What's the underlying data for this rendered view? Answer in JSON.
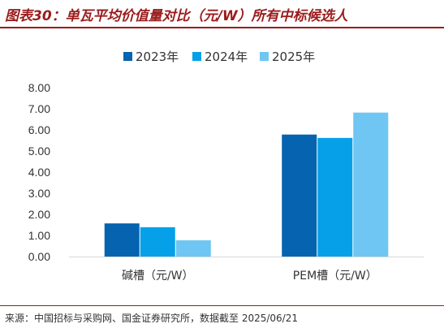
{
  "figure": {
    "title": "图表30：单瓦平均价值量对比（元/W）所有中标候选人",
    "source": "来源：中国招标与采购网、国金证券研究所，数据截至 2025/06/21"
  },
  "colors": {
    "title": "#9b1c1c",
    "series": [
      "#0563b0",
      "#05a0e8",
      "#6fc6f2"
    ],
    "axis": "#d9d9d9",
    "text": "#333333"
  },
  "chart_data": {
    "type": "bar",
    "title": "",
    "categories": [
      "碱槽（元/W）",
      "PEM槽（元/W）"
    ],
    "series": [
      {
        "name": "2023年",
        "values": [
          1.57,
          5.78
        ]
      },
      {
        "name": "2024年",
        "values": [
          1.39,
          5.62
        ]
      },
      {
        "name": "2025年",
        "values": [
          0.77,
          6.82
        ]
      }
    ],
    "ylim": [
      0,
      8
    ],
    "yticks": [
      "0.00",
      "1.00",
      "2.00",
      "3.00",
      "4.00",
      "5.00",
      "6.00",
      "7.00",
      "8.00"
    ],
    "xlabel": "",
    "ylabel": "",
    "legend_position": "top-center",
    "grid": false
  }
}
